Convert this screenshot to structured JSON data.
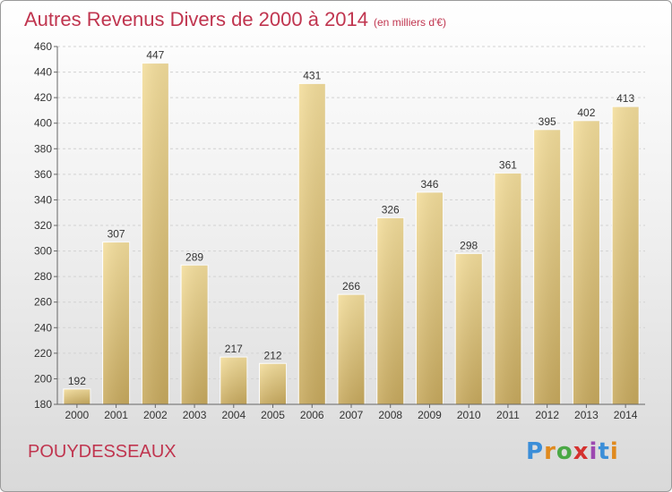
{
  "header": {
    "title": "Autres Revenus Divers de 2000 à 2014",
    "unit": "(en milliers d'€)"
  },
  "footer": {
    "commune": "POUYDESSEAUX",
    "logo_text": "Proxiti"
  },
  "colors": {
    "title": "#c0354f",
    "bar_light": "#f4de9c",
    "bar_dark": "#c8aa5e",
    "logo": [
      "#3b8ed8",
      "#e08a1e",
      "#4aa845",
      "#d4322f",
      "#9c48b0",
      "#3b8ed8",
      "#e08a1e"
    ]
  },
  "chart_data": {
    "type": "bar",
    "title": "Autres Revenus Divers de 2000 à 2014",
    "xlabel": "",
    "ylabel": "",
    "categories": [
      "2000",
      "2001",
      "2002",
      "2003",
      "2004",
      "2005",
      "2006",
      "2007",
      "2008",
      "2009",
      "2010",
      "2011",
      "2012",
      "2013",
      "2014"
    ],
    "values": [
      192,
      307,
      447,
      289,
      217,
      212,
      431,
      266,
      326,
      346,
      298,
      361,
      395,
      402,
      413
    ],
    "ylim": [
      180,
      460
    ],
    "yticks": [
      180,
      200,
      220,
      240,
      260,
      280,
      300,
      320,
      340,
      360,
      380,
      400,
      420,
      440,
      460
    ],
    "grid": true,
    "data_labels": true
  }
}
